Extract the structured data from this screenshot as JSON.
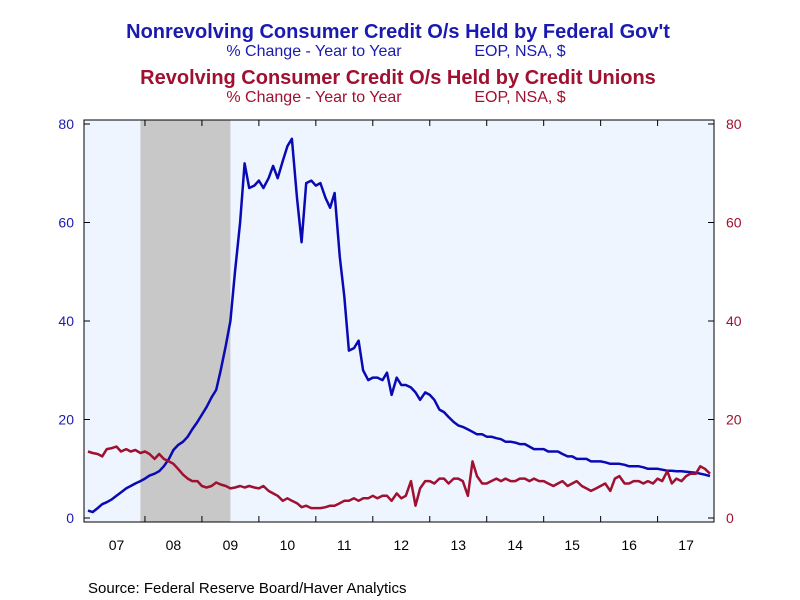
{
  "chart_data": {
    "type": "line",
    "title_1": "Nonrevolving Consumer Credit O/s Held by Federal Gov't",
    "subtitle_1": "% Change - Year to Year",
    "subtitle_1_units": "EOP, NSA, $",
    "title_2": "Revolving Consumer Credit O/s Held by Credit Unions",
    "subtitle_2": "% Change - Year to Year",
    "subtitle_2_units": "EOP, NSA, $",
    "source": "Source:  Federal Reserve Board/Haver Analytics",
    "x_range": [
      2007.0,
      2017.92
    ],
    "x_tick_labels": [
      "07",
      "08",
      "09",
      "10",
      "11",
      "12",
      "13",
      "14",
      "15",
      "16",
      "17"
    ],
    "x_tick_years": [
      2007,
      2008,
      2009,
      2010,
      2011,
      2012,
      2013,
      2014,
      2015,
      2016,
      2017
    ],
    "y_left": {
      "ylim": [
        0,
        80
      ],
      "ticks": [
        "0",
        "20",
        "40",
        "60",
        "80"
      ],
      "color": "#1a1ab0"
    },
    "y_right": {
      "ylim": [
        0,
        80
      ],
      "ticks": [
        "0",
        "20",
        "40",
        "60",
        "80"
      ],
      "color": "#a01030"
    },
    "recession_shade": {
      "start": 2007.92,
      "end": 2009.5,
      "color": "#c8c8c8"
    },
    "plot_background": "#eef5ff",
    "series": [
      {
        "name": "Nonrevolving Consumer Credit O/s Held by Federal Gov't",
        "axis": "left",
        "color": "#0a0ab4",
        "points": [
          [
            2007.0,
            1.5
          ],
          [
            2007.08,
            1.2
          ],
          [
            2007.17,
            2.0
          ],
          [
            2007.25,
            2.8
          ],
          [
            2007.33,
            3.2
          ],
          [
            2007.42,
            3.8
          ],
          [
            2007.5,
            4.5
          ],
          [
            2007.58,
            5.2
          ],
          [
            2007.67,
            6.0
          ],
          [
            2007.75,
            6.5
          ],
          [
            2007.83,
            7.0
          ],
          [
            2007.92,
            7.5
          ],
          [
            2008.0,
            8.0
          ],
          [
            2008.08,
            8.6
          ],
          [
            2008.17,
            9.0
          ],
          [
            2008.25,
            9.5
          ],
          [
            2008.33,
            10.5
          ],
          [
            2008.42,
            12.0
          ],
          [
            2008.5,
            13.8
          ],
          [
            2008.58,
            14.8
          ],
          [
            2008.67,
            15.5
          ],
          [
            2008.75,
            16.5
          ],
          [
            2008.83,
            18.0
          ],
          [
            2008.92,
            19.5
          ],
          [
            2009.0,
            21.0
          ],
          [
            2009.08,
            22.5
          ],
          [
            2009.17,
            24.5
          ],
          [
            2009.25,
            26.0
          ],
          [
            2009.33,
            30.0
          ],
          [
            2009.42,
            35.0
          ],
          [
            2009.5,
            40.0
          ],
          [
            2009.58,
            50.0
          ],
          [
            2009.67,
            60.0
          ],
          [
            2009.75,
            72.0
          ],
          [
            2009.83,
            67.0
          ],
          [
            2009.92,
            67.5
          ],
          [
            2010.0,
            68.5
          ],
          [
            2010.08,
            67.0
          ],
          [
            2010.17,
            69.0
          ],
          [
            2010.25,
            71.5
          ],
          [
            2010.33,
            69.0
          ],
          [
            2010.42,
            72.5
          ],
          [
            2010.5,
            75.5
          ],
          [
            2010.58,
            77.0
          ],
          [
            2010.67,
            65.0
          ],
          [
            2010.75,
            56.0
          ],
          [
            2010.83,
            68.0
          ],
          [
            2010.92,
            68.5
          ],
          [
            2011.0,
            67.5
          ],
          [
            2011.08,
            68.0
          ],
          [
            2011.17,
            65.0
          ],
          [
            2011.25,
            63.0
          ],
          [
            2011.33,
            66.0
          ],
          [
            2011.42,
            53.0
          ],
          [
            2011.5,
            45.0
          ],
          [
            2011.58,
            34.0
          ],
          [
            2011.67,
            34.5
          ],
          [
            2011.75,
            36.0
          ],
          [
            2011.83,
            30.0
          ],
          [
            2011.92,
            28.0
          ],
          [
            2012.0,
            28.5
          ],
          [
            2012.08,
            28.5
          ],
          [
            2012.17,
            28.0
          ],
          [
            2012.25,
            29.5
          ],
          [
            2012.33,
            25.0
          ],
          [
            2012.42,
            28.5
          ],
          [
            2012.5,
            27.0
          ],
          [
            2012.58,
            27.0
          ],
          [
            2012.67,
            26.5
          ],
          [
            2012.75,
            25.5
          ],
          [
            2012.83,
            24.0
          ],
          [
            2012.92,
            25.5
          ],
          [
            2013.0,
            25.0
          ],
          [
            2013.08,
            24.0
          ],
          [
            2013.17,
            22.0
          ],
          [
            2013.25,
            21.5
          ],
          [
            2013.33,
            20.5
          ],
          [
            2013.42,
            19.5
          ],
          [
            2013.5,
            18.8
          ],
          [
            2013.58,
            18.5
          ],
          [
            2013.67,
            18.0
          ],
          [
            2013.75,
            17.5
          ],
          [
            2013.83,
            17.0
          ],
          [
            2013.92,
            17.0
          ],
          [
            2014.0,
            16.5
          ],
          [
            2014.08,
            16.5
          ],
          [
            2014.17,
            16.2
          ],
          [
            2014.25,
            16.0
          ],
          [
            2014.33,
            15.5
          ],
          [
            2014.42,
            15.5
          ],
          [
            2014.5,
            15.3
          ],
          [
            2014.58,
            15.0
          ],
          [
            2014.67,
            15.0
          ],
          [
            2014.75,
            14.5
          ],
          [
            2014.83,
            14.0
          ],
          [
            2014.92,
            14.0
          ],
          [
            2015.0,
            14.0
          ],
          [
            2015.08,
            13.5
          ],
          [
            2015.17,
            13.5
          ],
          [
            2015.25,
            13.5
          ],
          [
            2015.33,
            13.0
          ],
          [
            2015.42,
            12.5
          ],
          [
            2015.5,
            12.5
          ],
          [
            2015.58,
            12.0
          ],
          [
            2015.67,
            12.0
          ],
          [
            2015.75,
            12.0
          ],
          [
            2015.83,
            11.5
          ],
          [
            2015.92,
            11.5
          ],
          [
            2016.0,
            11.5
          ],
          [
            2016.08,
            11.3
          ],
          [
            2016.17,
            11.0
          ],
          [
            2016.25,
            11.0
          ],
          [
            2016.33,
            11.0
          ],
          [
            2016.42,
            10.8
          ],
          [
            2016.5,
            10.5
          ],
          [
            2016.58,
            10.5
          ],
          [
            2016.67,
            10.5
          ],
          [
            2016.75,
            10.3
          ],
          [
            2016.83,
            10.0
          ],
          [
            2016.92,
            10.0
          ],
          [
            2017.0,
            10.0
          ],
          [
            2017.08,
            9.8
          ],
          [
            2017.17,
            9.6
          ],
          [
            2017.25,
            9.6
          ],
          [
            2017.33,
            9.5
          ],
          [
            2017.42,
            9.5
          ],
          [
            2017.5,
            9.4
          ],
          [
            2017.58,
            9.3
          ],
          [
            2017.67,
            9.2
          ],
          [
            2017.75,
            9.0
          ],
          [
            2017.83,
            8.8
          ],
          [
            2017.92,
            8.5
          ]
        ]
      },
      {
        "name": "Revolving Consumer Credit O/s Held by Credit Unions",
        "axis": "right",
        "color": "#a01030",
        "points": [
          [
            2007.0,
            13.5
          ],
          [
            2007.08,
            13.2
          ],
          [
            2007.17,
            13.0
          ],
          [
            2007.25,
            12.5
          ],
          [
            2007.33,
            14.0
          ],
          [
            2007.42,
            14.2
          ],
          [
            2007.5,
            14.5
          ],
          [
            2007.58,
            13.5
          ],
          [
            2007.67,
            14.0
          ],
          [
            2007.75,
            13.5
          ],
          [
            2007.83,
            13.8
          ],
          [
            2007.92,
            13.2
          ],
          [
            2008.0,
            13.5
          ],
          [
            2008.08,
            13.0
          ],
          [
            2008.17,
            12.0
          ],
          [
            2008.25,
            13.0
          ],
          [
            2008.33,
            12.0
          ],
          [
            2008.42,
            11.5
          ],
          [
            2008.5,
            11.0
          ],
          [
            2008.58,
            10.0
          ],
          [
            2008.67,
            8.8
          ],
          [
            2008.75,
            8.0
          ],
          [
            2008.83,
            7.5
          ],
          [
            2008.92,
            7.5
          ],
          [
            2009.0,
            6.5
          ],
          [
            2009.08,
            6.2
          ],
          [
            2009.17,
            6.5
          ],
          [
            2009.25,
            7.2
          ],
          [
            2009.33,
            6.8
          ],
          [
            2009.42,
            6.5
          ],
          [
            2009.5,
            6.0
          ],
          [
            2009.58,
            6.2
          ],
          [
            2009.67,
            6.5
          ],
          [
            2009.75,
            6.2
          ],
          [
            2009.83,
            6.5
          ],
          [
            2009.92,
            6.2
          ],
          [
            2010.0,
            6.0
          ],
          [
            2010.08,
            6.5
          ],
          [
            2010.17,
            5.5
          ],
          [
            2010.25,
            5.0
          ],
          [
            2010.33,
            4.5
          ],
          [
            2010.42,
            3.5
          ],
          [
            2010.5,
            4.0
          ],
          [
            2010.58,
            3.5
          ],
          [
            2010.67,
            3.0
          ],
          [
            2010.75,
            2.2
          ],
          [
            2010.83,
            2.5
          ],
          [
            2010.92,
            2.0
          ],
          [
            2011.0,
            2.0
          ],
          [
            2011.08,
            2.0
          ],
          [
            2011.17,
            2.2
          ],
          [
            2011.25,
            2.5
          ],
          [
            2011.33,
            2.5
          ],
          [
            2011.42,
            3.0
          ],
          [
            2011.5,
            3.5
          ],
          [
            2011.58,
            3.5
          ],
          [
            2011.67,
            4.0
          ],
          [
            2011.75,
            3.5
          ],
          [
            2011.83,
            4.0
          ],
          [
            2011.92,
            4.0
          ],
          [
            2012.0,
            4.5
          ],
          [
            2012.08,
            4.0
          ],
          [
            2012.17,
            4.5
          ],
          [
            2012.25,
            4.5
          ],
          [
            2012.33,
            3.5
          ],
          [
            2012.42,
            5.0
          ],
          [
            2012.5,
            4.0
          ],
          [
            2012.58,
            4.5
          ],
          [
            2012.67,
            7.5
          ],
          [
            2012.75,
            2.5
          ],
          [
            2012.83,
            6.0
          ],
          [
            2012.92,
            7.5
          ],
          [
            2013.0,
            7.5
          ],
          [
            2013.08,
            7.0
          ],
          [
            2013.17,
            8.0
          ],
          [
            2013.25,
            8.0
          ],
          [
            2013.33,
            7.0
          ],
          [
            2013.42,
            8.0
          ],
          [
            2013.5,
            8.0
          ],
          [
            2013.58,
            7.5
          ],
          [
            2013.67,
            4.5
          ],
          [
            2013.75,
            11.5
          ],
          [
            2013.83,
            8.5
          ],
          [
            2013.92,
            7.0
          ],
          [
            2014.0,
            7.0
          ],
          [
            2014.08,
            7.5
          ],
          [
            2014.17,
            8.0
          ],
          [
            2014.25,
            7.5
          ],
          [
            2014.33,
            8.0
          ],
          [
            2014.42,
            7.5
          ],
          [
            2014.5,
            7.5
          ],
          [
            2014.58,
            8.0
          ],
          [
            2014.67,
            8.0
          ],
          [
            2014.75,
            7.5
          ],
          [
            2014.83,
            8.0
          ],
          [
            2014.92,
            7.5
          ],
          [
            2015.0,
            7.5
          ],
          [
            2015.08,
            7.0
          ],
          [
            2015.17,
            6.5
          ],
          [
            2015.25,
            7.0
          ],
          [
            2015.33,
            7.5
          ],
          [
            2015.42,
            6.5
          ],
          [
            2015.5,
            7.0
          ],
          [
            2015.58,
            7.5
          ],
          [
            2015.67,
            6.5
          ],
          [
            2015.75,
            6.0
          ],
          [
            2015.83,
            5.5
          ],
          [
            2015.92,
            6.0
          ],
          [
            2016.0,
            6.5
          ],
          [
            2016.08,
            7.0
          ],
          [
            2016.17,
            5.5
          ],
          [
            2016.25,
            8.0
          ],
          [
            2016.33,
            8.5
          ],
          [
            2016.42,
            7.0
          ],
          [
            2016.5,
            7.0
          ],
          [
            2016.58,
            7.5
          ],
          [
            2016.67,
            7.5
          ],
          [
            2016.75,
            7.0
          ],
          [
            2016.83,
            7.5
          ],
          [
            2016.92,
            7.0
          ],
          [
            2017.0,
            8.0
          ],
          [
            2017.08,
            7.5
          ],
          [
            2017.17,
            9.5
          ],
          [
            2017.25,
            7.0
          ],
          [
            2017.33,
            8.0
          ],
          [
            2017.42,
            7.5
          ],
          [
            2017.5,
            8.5
          ],
          [
            2017.58,
            9.0
          ],
          [
            2017.67,
            9.0
          ],
          [
            2017.75,
            10.5
          ],
          [
            2017.83,
            10.0
          ],
          [
            2017.92,
            9.0
          ]
        ]
      }
    ]
  }
}
